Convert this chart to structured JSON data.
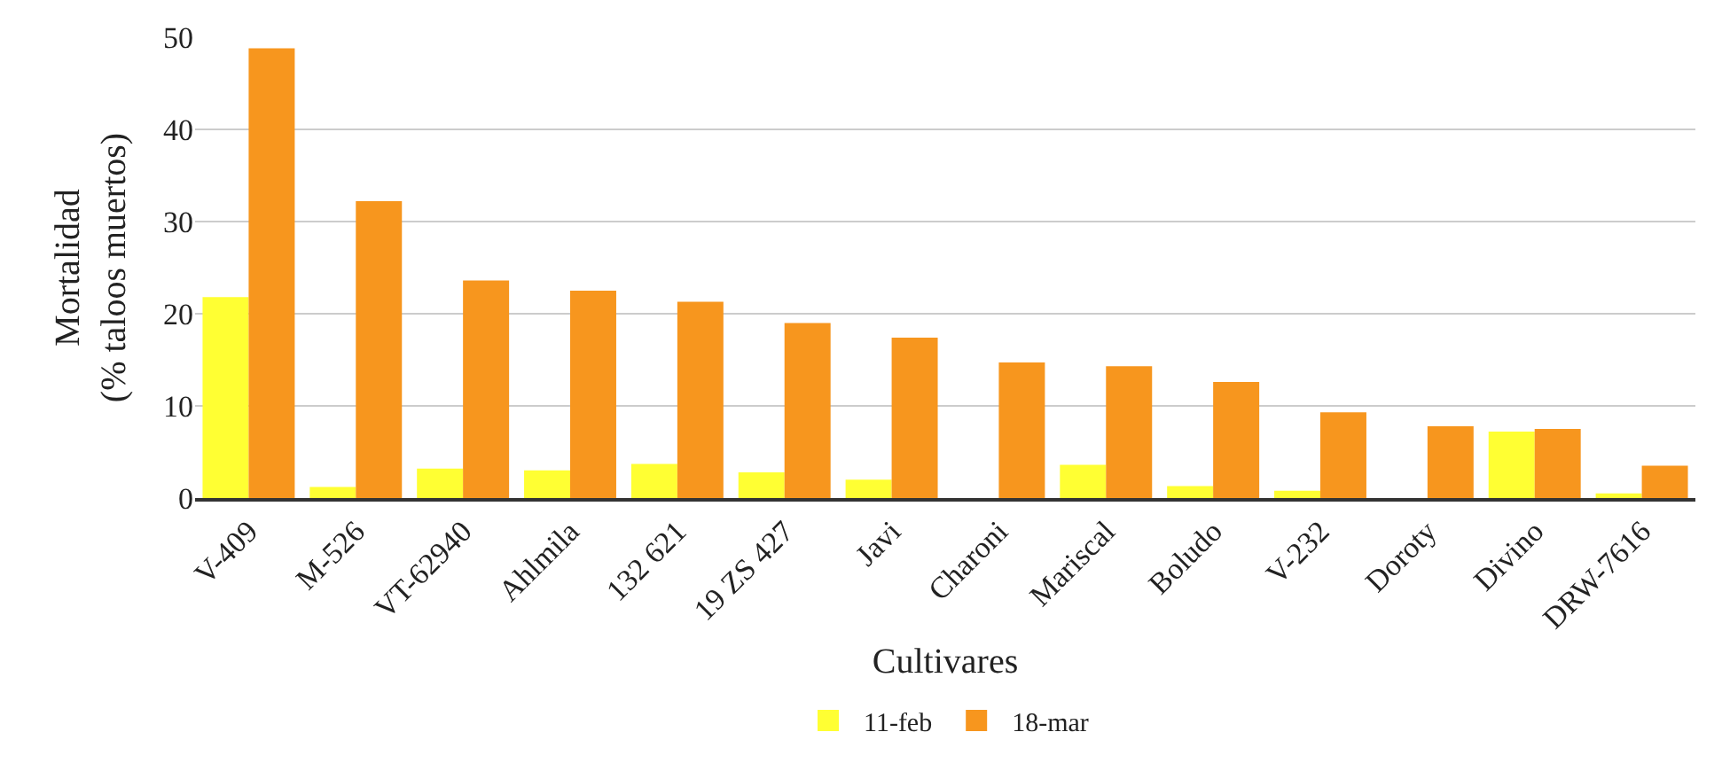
{
  "chart_data": {
    "type": "bar",
    "xlabel": "Cultivares",
    "ylabel": "Mortalidad\n(% taloos muertos)",
    "categories": [
      "V-409",
      "M-526",
      "VT-62940",
      "Ahlmila",
      "132 621",
      "19 ZS 427",
      "Javi",
      "Charoni",
      "Mariscal",
      "Boludo",
      "V-232",
      "Doroty",
      "Divino",
      "DRW-7616"
    ],
    "series": [
      {
        "name": "11-feb",
        "color": "#ffff33",
        "values": [
          21.8,
          1.2,
          3.2,
          3.0,
          3.7,
          2.8,
          2.0,
          0,
          3.6,
          1.3,
          0.8,
          0,
          7.2,
          0.5
        ]
      },
      {
        "name": "18-mar",
        "color": "#f7961e",
        "values": [
          48.8,
          32.2,
          23.6,
          22.5,
          21.3,
          19.0,
          17.4,
          14.7,
          14.3,
          12.6,
          9.3,
          7.8,
          7.5,
          3.5
        ]
      }
    ],
    "ylim": [
      0,
      50
    ],
    "yticks": [
      0,
      10,
      20,
      30,
      40,
      50
    ],
    "grid": "y",
    "legend": "bottom"
  }
}
